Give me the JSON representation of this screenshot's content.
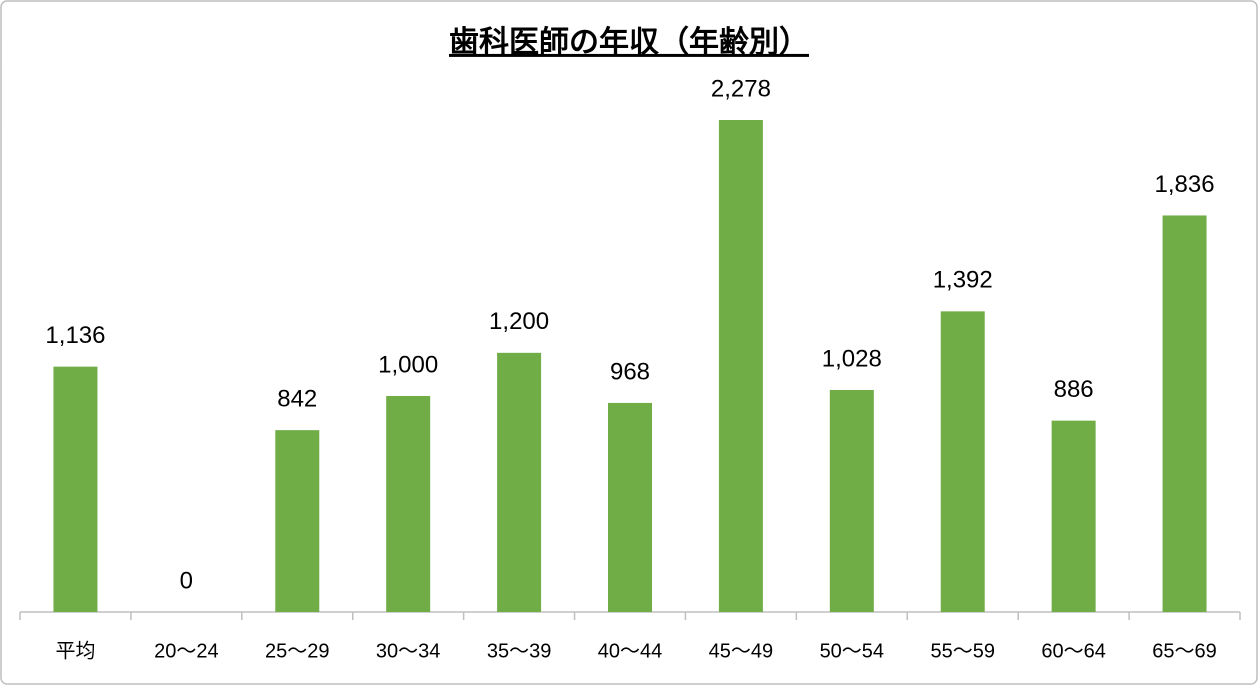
{
  "chart_data": {
    "type": "bar",
    "title": "歯科医師の年収（年齢別）",
    "categories": [
      "平均",
      "20〜24",
      "25〜29",
      "30〜34",
      "35〜39",
      "40〜44",
      "45〜49",
      "50〜54",
      "55〜59",
      "60〜64",
      "65〜69"
    ],
    "values": [
      1136,
      0,
      842,
      1000,
      1200,
      968,
      2278,
      1028,
      1392,
      886,
      1836
    ],
    "value_labels": [
      "1,136",
      "0",
      "842",
      "1,000",
      "1,200",
      "968",
      "2,278",
      "1,028",
      "1,392",
      "886",
      "1,836"
    ],
    "color": "#70ad47"
  }
}
